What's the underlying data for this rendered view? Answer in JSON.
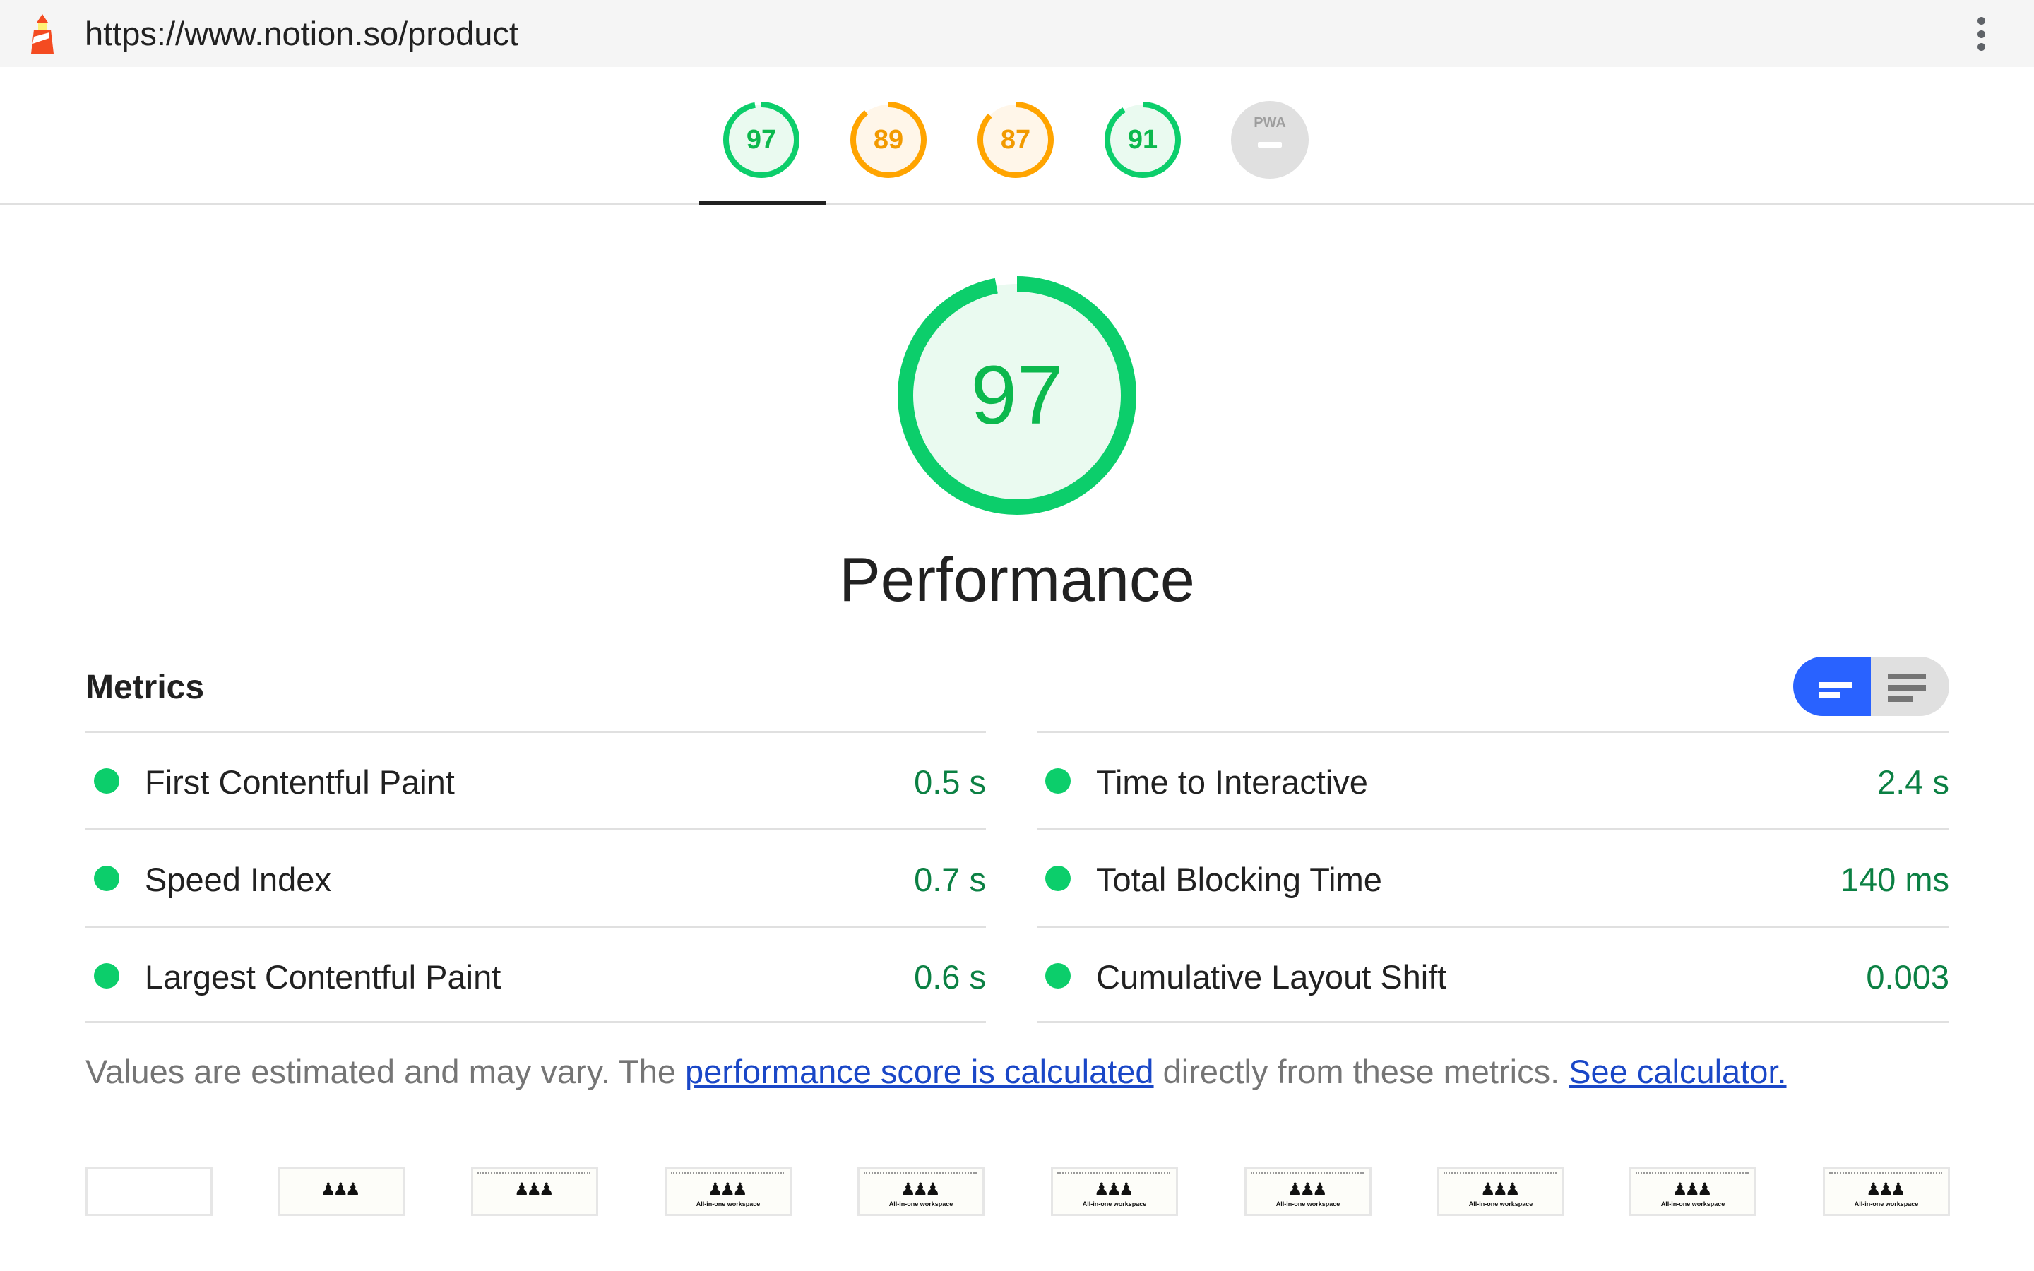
{
  "browser": {
    "url": "https://www.notion.so/product",
    "menu_icon": "kebab-menu-icon",
    "site_icon": "lighthouse-icon"
  },
  "colors": {
    "pass": "#0cce6b",
    "average": "#ffa400",
    "accent": "#2962ff",
    "link": "#1a47c7"
  },
  "gauges": [
    {
      "score": "97",
      "status": "pass",
      "selected": true
    },
    {
      "score": "89",
      "status": "average"
    },
    {
      "score": "87",
      "status": "average"
    },
    {
      "score": "91",
      "status": "pass"
    },
    {
      "label": "PWA",
      "status": "na"
    }
  ],
  "main": {
    "score": "97",
    "title": "Performance"
  },
  "metrics": {
    "heading": "Metrics",
    "view_toggle": {
      "selected": "compact",
      "options": [
        "compact",
        "expanded"
      ]
    },
    "left": [
      {
        "label": "First Contentful Paint",
        "value": "0.5 s"
      },
      {
        "label": "Speed Index",
        "value": "0.7 s"
      },
      {
        "label": "Largest Contentful Paint",
        "value": "0.6 s"
      }
    ],
    "right": [
      {
        "label": "Time to Interactive",
        "value": "2.4 s"
      },
      {
        "label": "Total Blocking Time",
        "value": "140 ms"
      },
      {
        "label": "Cumulative Layout Shift",
        "value": "0.003"
      }
    ]
  },
  "footnote": {
    "text1": "Values are estimated and may vary. The ",
    "link1": "performance score is calculated",
    "text2": " directly from these metrics. ",
    "link2": "See calculator."
  },
  "filmstrip": {
    "caption": "All-in-one workspace",
    "frames": [
      "blank",
      "illustration",
      "illustration",
      "caption",
      "caption",
      "caption",
      "caption",
      "caption",
      "caption",
      "caption"
    ]
  }
}
